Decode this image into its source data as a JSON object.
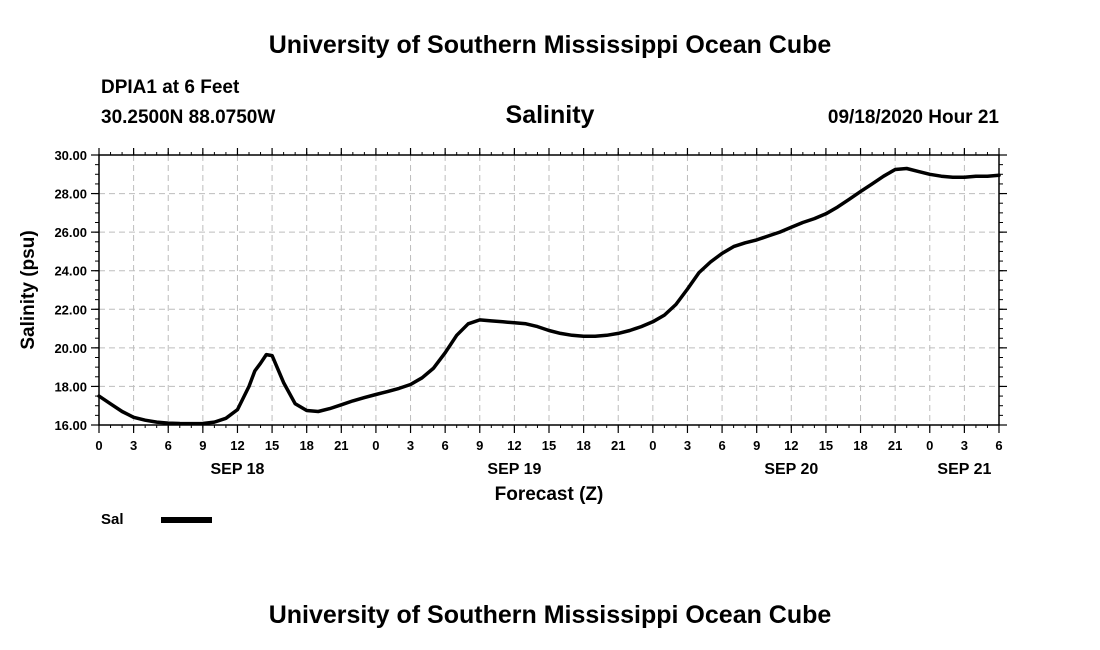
{
  "header": {
    "top_title": "University of Southern Mississippi Ocean Cube",
    "station": "DPIA1 at 6 Feet",
    "coords": "30.2500N 88.0750W",
    "variable": "Salinity",
    "timestamp": "09/18/2020 Hour 21"
  },
  "footer": {
    "bottom_title": "University of Southern Mississippi Ocean Cube"
  },
  "chart_data": {
    "type": "line",
    "title": "Salinity",
    "xlabel": "Forecast (Z)",
    "ylabel": "Salinity (psu)",
    "ylim": [
      16,
      30
    ],
    "yticks": [
      "16.00",
      "18.00",
      "20.00",
      "22.00",
      "24.00",
      "26.00",
      "28.00",
      "30.00"
    ],
    "xlim": [
      0,
      78
    ],
    "xtick_labels": [
      "0",
      "3",
      "6",
      "9",
      "12",
      "15",
      "18",
      "21",
      "0",
      "3",
      "6",
      "9",
      "12",
      "15",
      "18",
      "21",
      "0",
      "3",
      "6",
      "9",
      "12",
      "15",
      "18",
      "21",
      "0",
      "3",
      "6"
    ],
    "date_labels": [
      {
        "label": "SEP 18",
        "hour": 12
      },
      {
        "label": "SEP 19",
        "hour": 36
      },
      {
        "label": "SEP 20",
        "hour": 60
      },
      {
        "label": "SEP 21",
        "hour": 75
      }
    ],
    "grid": true,
    "legend": "bottom-left",
    "series": [
      {
        "name": "Sal",
        "color": "#000000",
        "x": [
          0,
          1,
          2,
          3,
          4,
          5,
          6,
          7,
          8,
          9,
          10,
          11,
          12,
          13,
          13.5,
          14,
          14.5,
          15,
          16,
          17,
          18,
          19,
          20,
          21,
          22,
          23,
          24,
          25,
          26,
          27,
          28,
          29,
          30,
          31,
          32,
          33,
          34,
          35,
          36,
          37,
          38,
          39,
          40,
          41,
          42,
          43,
          44,
          45,
          46,
          47,
          48,
          49,
          50,
          51,
          52,
          53,
          54,
          55,
          56,
          57,
          58,
          59,
          60,
          61,
          62,
          63,
          64,
          65,
          66,
          67,
          68,
          69,
          70,
          71,
          72,
          73,
          74,
          75,
          76,
          77,
          78
        ],
        "values": [
          17.5,
          17.1,
          16.7,
          16.4,
          16.25,
          16.15,
          16.1,
          16.08,
          16.07,
          16.08,
          16.15,
          16.35,
          16.8,
          18.0,
          18.8,
          19.2,
          19.65,
          19.6,
          18.2,
          17.1,
          16.75,
          16.7,
          16.85,
          17.05,
          17.25,
          17.42,
          17.58,
          17.73,
          17.9,
          18.1,
          18.45,
          18.95,
          19.75,
          20.65,
          21.25,
          21.45,
          21.4,
          21.35,
          21.3,
          21.25,
          21.1,
          20.9,
          20.75,
          20.65,
          20.6,
          20.6,
          20.65,
          20.75,
          20.9,
          21.1,
          21.35,
          21.7,
          22.25,
          23.05,
          23.9,
          24.45,
          24.9,
          25.25,
          25.45,
          25.6,
          25.8,
          26.0,
          26.25,
          26.5,
          26.7,
          26.95,
          27.3,
          27.7,
          28.1,
          28.5,
          28.9,
          29.25,
          29.3,
          29.15,
          29.0,
          28.9,
          28.85,
          28.85,
          28.9,
          28.9,
          28.95
        ]
      }
    ]
  }
}
